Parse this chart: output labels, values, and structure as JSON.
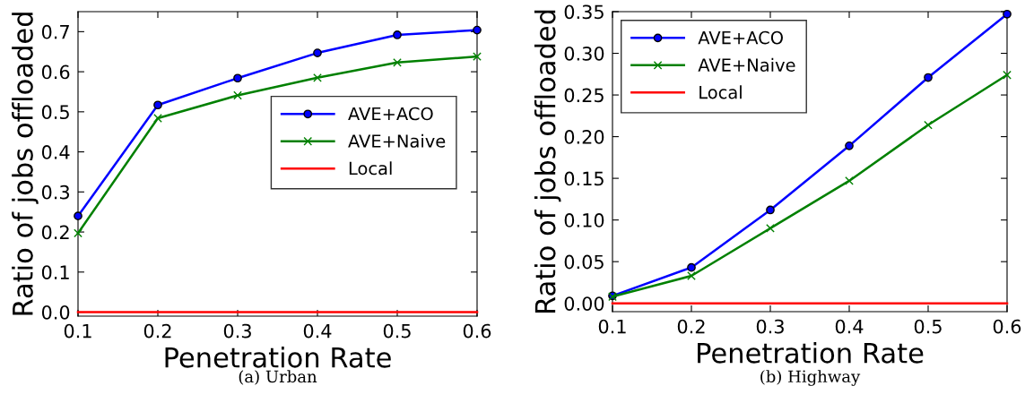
{
  "chart_data": [
    {
      "type": "line",
      "xlabel": "Penetration Rate",
      "ylabel": "Ratio of jobs offloaded",
      "annotations": [
        "(a) Urban"
      ],
      "x": [
        0.1,
        0.2,
        0.3,
        0.4,
        0.5,
        0.6
      ],
      "series": [
        {
          "name": "AVE+ACO",
          "color": "#0000ff",
          "marker": "circle",
          "values": [
            0.24,
            0.517,
            0.584,
            0.647,
            0.692,
            0.704
          ]
        },
        {
          "name": "AVE+Naive",
          "color": "#008000",
          "marker": "cross",
          "values": [
            0.197,
            0.484,
            0.541,
            0.585,
            0.623,
            0.638
          ]
        },
        {
          "name": "Local",
          "color": "#ff0000",
          "marker": "none",
          "values": [
            0,
            0,
            0,
            0,
            0,
            0
          ]
        }
      ],
      "xlim": [
        0.1,
        0.6
      ],
      "ylim": [
        -0.01,
        0.75
      ],
      "xticks": [
        0.1,
        0.2,
        0.3,
        0.4,
        0.5,
        0.6
      ],
      "yticks": [
        {
          "value": 0,
          "label": "0.0"
        },
        0.1,
        0.2,
        0.3,
        0.4,
        0.5,
        0.6,
        0.7
      ],
      "grid": false,
      "legend": "center right"
    },
    {
      "type": "line",
      "xlabel": "Penetration Rate",
      "ylabel": "Ratio of jobs offloaded",
      "annotations": [
        "(b) Highway"
      ],
      "x": [
        0.1,
        0.2,
        0.3,
        0.4,
        0.5,
        0.6
      ],
      "series": [
        {
          "name": "AVE+ACO",
          "color": "#0000ff",
          "marker": "circle",
          "values": [
            0.009,
            0.043,
            0.112,
            0.189,
            0.271,
            0.347
          ]
        },
        {
          "name": "AVE+Naive",
          "color": "#008000",
          "marker": "cross",
          "values": [
            0.008,
            0.033,
            0.09,
            0.147,
            0.214,
            0.274
          ]
        },
        {
          "name": "Local",
          "color": "#ff0000",
          "marker": "none",
          "values": [
            0,
            0,
            0,
            0,
            0,
            0
          ]
        }
      ],
      "xlim": [
        0.1,
        0.6
      ],
      "ylim": [
        -0.01,
        0.35
      ],
      "xticks": [
        0.1,
        0.2,
        0.3,
        0.4,
        0.5,
        0.6
      ],
      "yticks": [
        {
          "value": 0,
          "label": "0.00"
        },
        {
          "value": 0.05,
          "label": "0.05"
        },
        {
          "value": 0.1,
          "label": "0.10"
        },
        {
          "value": 0.15,
          "label": "0.15"
        },
        {
          "value": 0.2,
          "label": "0.20"
        },
        {
          "value": 0.25,
          "label": "0.25"
        },
        {
          "value": 0.3,
          "label": "0.30"
        },
        {
          "value": 0.35,
          "label": "0.35"
        }
      ],
      "grid": false,
      "legend": "upper left"
    }
  ]
}
